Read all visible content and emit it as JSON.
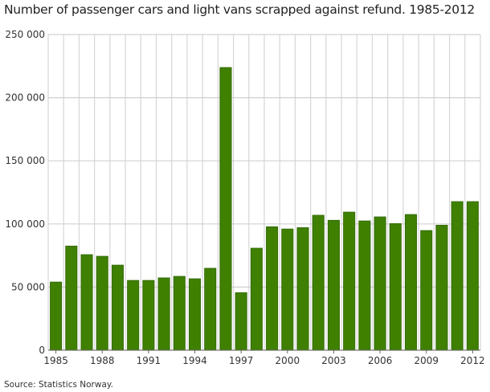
{
  "chart_data": {
    "type": "bar",
    "title": "Number of passenger cars and light vans scrapped against refund. 1985-2012",
    "source": "Source: Statistics Norway.",
    "categories": [
      "1985",
      "1986",
      "1987",
      "1988",
      "1989",
      "1990",
      "1991",
      "1992",
      "1993",
      "1994",
      "1995",
      "1996",
      "1997",
      "1998",
      "1999",
      "2000",
      "2001",
      "2002",
      "2003",
      "2004",
      "2005",
      "2006",
      "2007",
      "2008",
      "2009",
      "2010",
      "2011",
      "2012"
    ],
    "x_tick_labels": [
      "1985",
      "1988",
      "1991",
      "1994",
      "1997",
      "2000",
      "2003",
      "2006",
      "2009",
      "2012"
    ],
    "values": [
      54000,
      82500,
      75700,
      74400,
      67400,
      55300,
      55300,
      57300,
      58500,
      56600,
      64900,
      223900,
      45600,
      80800,
      97800,
      96000,
      97100,
      106900,
      102900,
      109400,
      102400,
      105600,
      100300,
      107500,
      94800,
      99000,
      117700,
      117700
    ],
    "ylim": [
      0,
      250000
    ],
    "y_ticks": [
      0,
      50000,
      100000,
      150000,
      200000,
      250000
    ],
    "y_tick_labels": [
      "0",
      "50 000",
      "100 000",
      "150 000",
      "200 000",
      "250 000"
    ],
    "xlabel": "",
    "ylabel": "",
    "grid": true,
    "bar_color": "#3f8000"
  }
}
